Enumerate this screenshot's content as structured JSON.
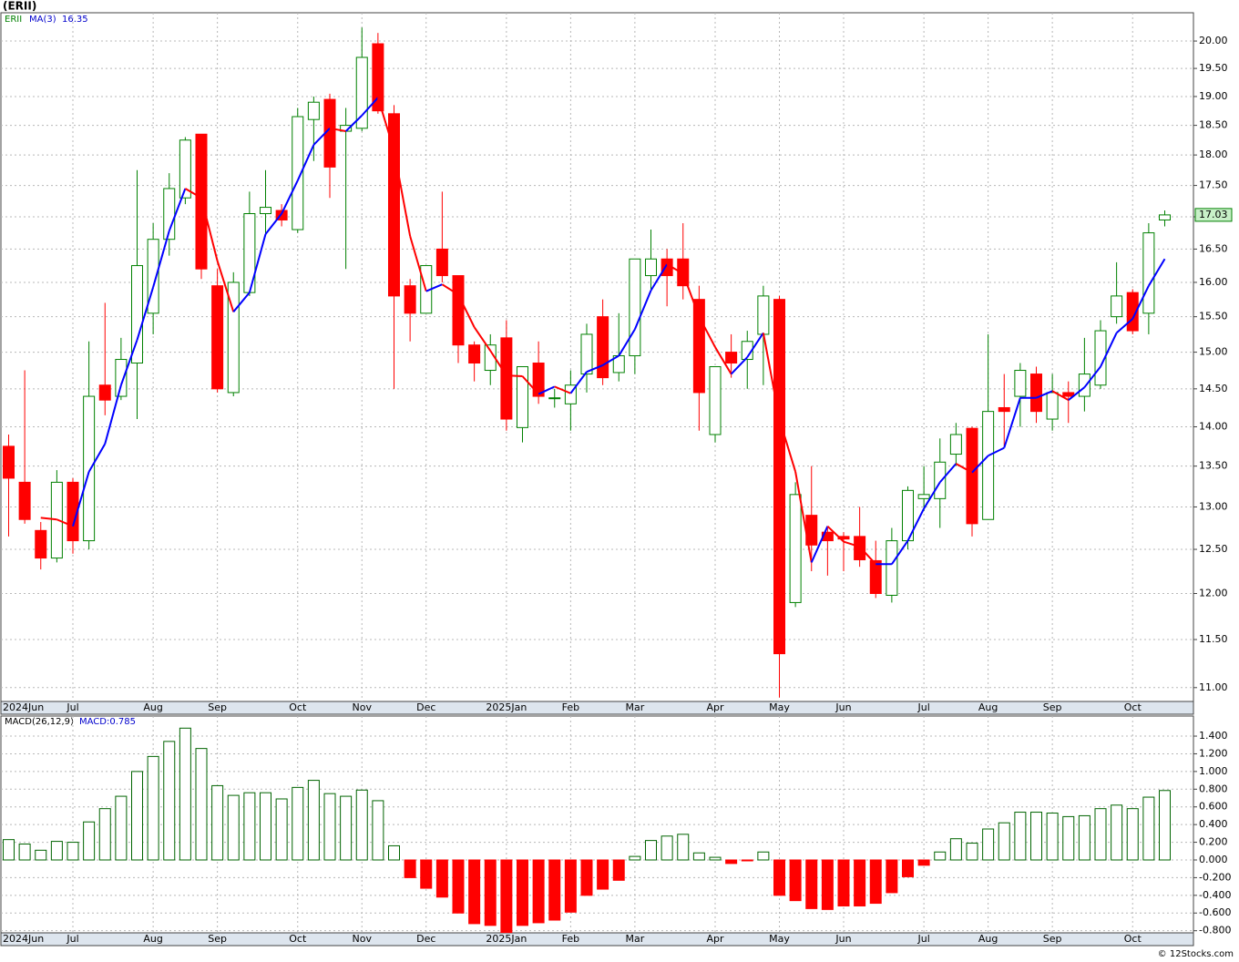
{
  "chart_data": [
    {
      "type": "candlestick",
      "title": "(ERII)",
      "symbol": "ERII",
      "log_scale": true,
      "grid": true,
      "up_color": "#008000",
      "down_color": "#ff0000",
      "categories": [
        "2024Jun",
        null,
        null,
        null,
        "Jul",
        null,
        null,
        null,
        null,
        "Aug",
        null,
        null,
        null,
        "Sep",
        null,
        null,
        null,
        null,
        "Oct",
        null,
        null,
        null,
        "Nov",
        null,
        null,
        null,
        "Dec",
        null,
        null,
        null,
        null,
        "2025Jan",
        null,
        null,
        null,
        "Feb",
        null,
        null,
        null,
        "Mar",
        null,
        null,
        null,
        null,
        "Apr",
        null,
        null,
        null,
        "May",
        null,
        null,
        null,
        "Jun",
        null,
        null,
        null,
        null,
        "Jul",
        null,
        null,
        null,
        "Aug",
        null,
        null,
        null,
        "Sep",
        null,
        null,
        null,
        null,
        "Oct",
        null,
        null
      ],
      "open": [
        13.75,
        13.3,
        12.72,
        12.4,
        13.3,
        12.6,
        14.55,
        14.4,
        14.85,
        15.55,
        16.65,
        17.3,
        18.35,
        15.95,
        14.45,
        15.85,
        17.05,
        17.1,
        16.8,
        18.6,
        18.95,
        18.4,
        18.45,
        19.95,
        18.7,
        15.95,
        15.55,
        16.5,
        16.1,
        15.1,
        14.75,
        15.2,
        13.99,
        14.85,
        14.37,
        14.3,
        14.7,
        15.5,
        14.72,
        14.95,
        16.1,
        16.35,
        16.35,
        15.75,
        13.9,
        15.0,
        14.9,
        15.25,
        15.75,
        11.9,
        12.9,
        12.7,
        12.65,
        12.65,
        12.37,
        11.98,
        12.6,
        13.1,
        13.1,
        13.65,
        13.98,
        12.85,
        14.25,
        14.4,
        14.7,
        14.1,
        14.45,
        14.4,
        14.55,
        15.5,
        15.85,
        15.55,
        16.95
      ],
      "high": [
        13.9,
        14.75,
        12.82,
        13.45,
        13.35,
        15.15,
        15.7,
        15.2,
        17.75,
        16.9,
        17.7,
        18.3,
        18.35,
        16.2,
        16.15,
        17.4,
        17.75,
        17.2,
        18.8,
        19.0,
        19.05,
        18.8,
        20.25,
        20.15,
        18.85,
        16.05,
        16.25,
        17.4,
        16.1,
        15.15,
        15.25,
        15.45,
        14.8,
        15.15,
        14.5,
        14.75,
        15.4,
        15.75,
        15.55,
        16.35,
        16.8,
        16.5,
        16.9,
        15.95,
        14.8,
        15.25,
        15.3,
        15.95,
        15.8,
        13.3,
        13.5,
        12.75,
        12.7,
        13.0,
        12.6,
        12.75,
        13.25,
        13.5,
        13.85,
        14.05,
        14.0,
        15.25,
        14.7,
        14.85,
        14.8,
        14.7,
        14.6,
        15.2,
        15.45,
        16.3,
        15.9,
        16.9,
        17.1
      ],
      "low": [
        12.65,
        12.8,
        12.27,
        12.35,
        12.45,
        12.5,
        14.15,
        14.35,
        14.1,
        15.25,
        16.4,
        17.2,
        16.05,
        14.45,
        14.4,
        15.8,
        16.7,
        16.85,
        16.75,
        17.9,
        17.3,
        16.2,
        18.4,
        18.7,
        14.5,
        15.15,
        15.55,
        16.0,
        14.85,
        14.6,
        14.55,
        13.95,
        13.8,
        14.3,
        14.25,
        13.95,
        14.45,
        14.55,
        14.6,
        14.7,
        15.9,
        15.65,
        15.75,
        13.95,
        13.8,
        14.65,
        14.5,
        14.55,
        10.9,
        11.85,
        12.25,
        12.2,
        12.25,
        12.3,
        11.95,
        11.9,
        12.5,
        12.95,
        12.75,
        13.5,
        12.65,
        12.85,
        13.75,
        14.0,
        14.05,
        13.95,
        14.05,
        14.2,
        14.5,
        15.4,
        15.25,
        15.25,
        16.85
      ],
      "close": [
        13.35,
        12.85,
        12.4,
        13.3,
        12.6,
        14.4,
        14.35,
        14.9,
        16.25,
        16.65,
        17.45,
        18.25,
        16.2,
        14.5,
        16.0,
        17.05,
        17.15,
        16.95,
        18.65,
        18.9,
        17.8,
        18.5,
        19.7,
        18.75,
        15.8,
        15.55,
        16.25,
        16.1,
        15.1,
        14.85,
        15.1,
        14.1,
        14.8,
        14.4,
        14.38,
        14.55,
        15.25,
        14.65,
        14.95,
        16.35,
        16.35,
        16.1,
        15.95,
        14.45,
        14.8,
        14.85,
        15.15,
        15.8,
        11.35,
        13.15,
        12.55,
        12.6,
        12.62,
        12.38,
        12.0,
        12.6,
        13.2,
        13.15,
        13.55,
        13.9,
        12.8,
        14.2,
        14.2,
        14.75,
        14.2,
        14.45,
        14.4,
        14.7,
        15.3,
        15.8,
        15.3,
        16.75,
        17.03
      ],
      "series": [
        {
          "name": "MA(3)",
          "color": "#0000ff",
          "falling_color": "#ff0000",
          "values": [
            null,
            null,
            12.87,
            12.85,
            12.77,
            13.43,
            13.78,
            14.55,
            15.17,
            15.93,
            16.78,
            17.45,
            17.3,
            16.32,
            15.57,
            15.85,
            16.73,
            17.05,
            17.58,
            18.17,
            18.45,
            18.4,
            18.67,
            18.98,
            18.08,
            16.7,
            15.87,
            15.97,
            15.82,
            15.35,
            15.02,
            14.68,
            14.67,
            14.43,
            14.53,
            14.44,
            14.73,
            14.82,
            14.95,
            15.32,
            15.88,
            16.27,
            16.13,
            15.5,
            15.07,
            14.7,
            14.93,
            15.27,
            14.1,
            13.43,
            12.35,
            12.77,
            12.59,
            12.53,
            12.33,
            12.33,
            12.6,
            12.98,
            13.3,
            13.53,
            13.42,
            13.63,
            13.73,
            14.38,
            14.38,
            14.47,
            14.35,
            14.52,
            14.8,
            15.27,
            15.47,
            15.95,
            16.35
          ]
        }
      ],
      "ylim": [
        10.86,
        20.53
      ],
      "yticks": [
        {
          "value": 11,
          "label": "11.00"
        },
        {
          "value": 11.5,
          "label": "11.50"
        },
        {
          "value": 12,
          "label": "12.00"
        },
        {
          "value": 12.5,
          "label": "12.50"
        },
        {
          "value": 13,
          "label": "13.00"
        },
        {
          "value": 13.5,
          "label": "13.50"
        },
        {
          "value": 14,
          "label": "14.00"
        },
        {
          "value": 14.5,
          "label": "14.50"
        },
        {
          "value": 15,
          "label": "15.00"
        },
        {
          "value": 15.5,
          "label": "15.50"
        },
        {
          "value": 16,
          "label": "16.00"
        },
        {
          "value": 16.5,
          "label": "16.50"
        },
        {
          "value": 17,
          "label": "17.00"
        },
        {
          "value": 17.5,
          "label": "17.50"
        },
        {
          "value": 18,
          "label": "18.00"
        },
        {
          "value": 18.5,
          "label": "18.50"
        },
        {
          "value": 19,
          "label": "19.00"
        },
        {
          "value": 19.5,
          "label": "19.50"
        },
        {
          "value": 20,
          "label": "20.00"
        }
      ],
      "watermark": "© 12Stocks.com"
    },
    {
      "type": "bar",
      "legend": [
        "MACD(26,12,9)",
        "MACD:0.785"
      ],
      "grid": true,
      "positive_color": "#006400",
      "negative_color": "#ff0000",
      "categories": [
        "2024Jun",
        null,
        null,
        null,
        "Jul",
        null,
        null,
        null,
        null,
        "Aug",
        null,
        null,
        null,
        "Sep",
        null,
        null,
        null,
        null,
        "Oct",
        null,
        null,
        null,
        "Nov",
        null,
        null,
        null,
        "Dec",
        null,
        null,
        null,
        null,
        "2025Jan",
        null,
        null,
        null,
        "Feb",
        null,
        null,
        null,
        "Mar",
        null,
        null,
        null,
        null,
        "Apr",
        null,
        null,
        null,
        "May",
        null,
        null,
        null,
        "Jun",
        null,
        null,
        null,
        null,
        "Jul",
        null,
        null,
        null,
        "Aug",
        null,
        null,
        null,
        "Sep",
        null,
        null,
        null,
        null,
        "Oct",
        null,
        null
      ],
      "values": [
        0.23,
        0.18,
        0.11,
        0.21,
        0.2,
        0.43,
        0.58,
        0.72,
        1.0,
        1.17,
        1.34,
        1.49,
        1.26,
        0.84,
        0.73,
        0.76,
        0.76,
        0.69,
        0.82,
        0.9,
        0.75,
        0.72,
        0.79,
        0.67,
        0.16,
        -0.2,
        -0.32,
        -0.42,
        -0.6,
        -0.72,
        -0.74,
        -0.82,
        -0.74,
        -0.71,
        -0.68,
        -0.59,
        -0.4,
        -0.33,
        -0.23,
        0.04,
        0.22,
        0.27,
        0.29,
        0.08,
        0.03,
        -0.04,
        -0.01,
        0.09,
        -0.4,
        -0.46,
        -0.55,
        -0.56,
        -0.52,
        -0.52,
        -0.49,
        -0.37,
        -0.19,
        -0.06,
        0.09,
        0.24,
        0.19,
        0.35,
        0.42,
        0.54,
        0.54,
        0.53,
        0.49,
        0.5,
        0.58,
        0.62,
        0.58,
        0.71,
        0.785
      ],
      "ylim": [
        -0.824,
        1.627
      ],
      "yticks": [
        {
          "value": -0.8,
          "label": "-0.800"
        },
        {
          "value": -0.6,
          "label": "-0.600"
        },
        {
          "value": -0.4,
          "label": "-0.400"
        },
        {
          "value": -0.2,
          "label": "-0.200"
        },
        {
          "value": 0,
          "label": "0.000"
        },
        {
          "value": 0.2,
          "label": "0.200"
        },
        {
          "value": 0.4,
          "label": "0.400"
        },
        {
          "value": 0.6,
          "label": "0.600"
        },
        {
          "value": 0.8,
          "label": "0.800"
        },
        {
          "value": 1.0,
          "label": "1.000"
        },
        {
          "value": 1.2,
          "label": "1.200"
        },
        {
          "value": 1.4,
          "label": "1.400"
        }
      ]
    }
  ]
}
